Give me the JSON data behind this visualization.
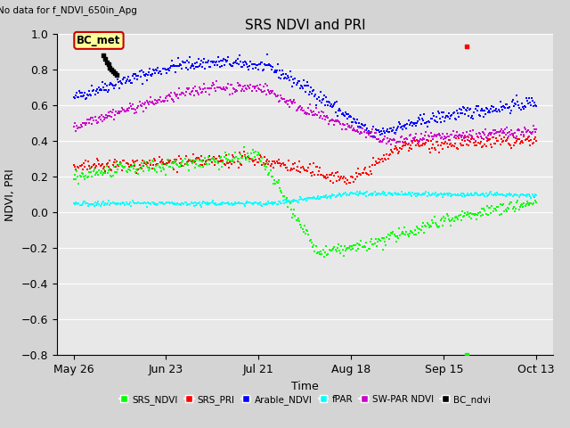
{
  "title": "SRS NDVI and PRI",
  "no_data_text": "No data for f_NDVI_650in_Apg",
  "xlabel": "Time",
  "ylabel": "NDVI, PRI",
  "ylim": [
    -0.8,
    1.0
  ],
  "yticks": [
    -0.8,
    -0.6,
    -0.4,
    -0.2,
    0.0,
    0.2,
    0.4,
    0.6,
    0.8,
    1.0
  ],
  "fig_width": 6.4,
  "fig_height": 4.8,
  "dpi": 100,
  "bg_color": "#d4d4d4",
  "plot_bg_color": "#e8e8e8",
  "grid_color": "#ffffff",
  "legend_entries": [
    "SRS_NDVI",
    "SRS_PRI",
    "Arable_NDVI",
    "fPAR",
    "SW-PAR NDVI",
    "BC_ndvi"
  ],
  "legend_colors": [
    "#00ff00",
    "#ff0000",
    "#0000ff",
    "#00ffff",
    "#cc00cc",
    "#000000"
  ],
  "bc_met_box_color": "#ffff99",
  "bc_met_border_color": "#cc0000",
  "tick_labels": [
    "May 26",
    "Jun 23",
    "Jul 21",
    "Aug 18",
    "Sep 15",
    "Oct 13"
  ],
  "tick_days": [
    0,
    28,
    56,
    84,
    112,
    140
  ],
  "total_days": 140,
  "xlim_left": -5,
  "xlim_right": 145
}
